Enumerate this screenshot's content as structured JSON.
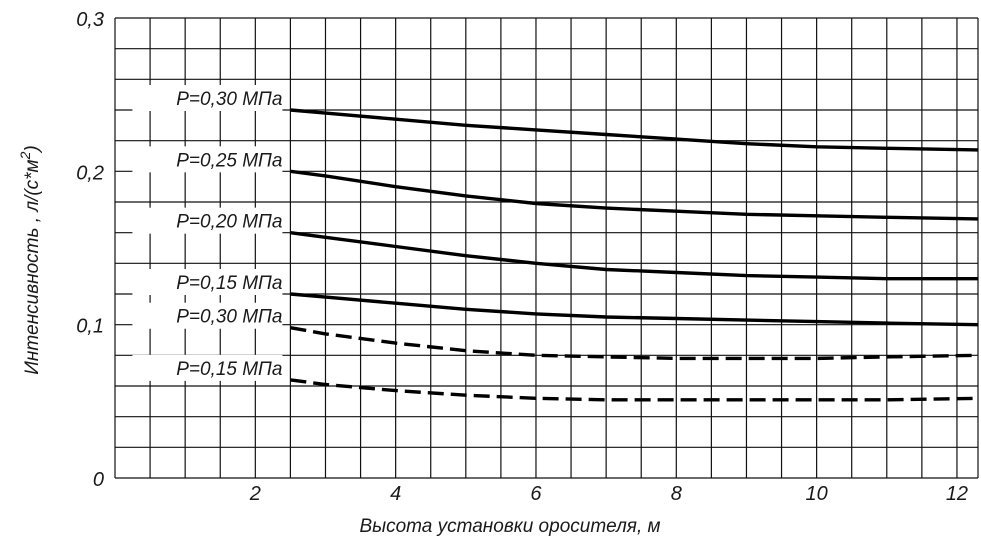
{
  "chart_data": {
    "type": "line",
    "xlabel": "Высота установки оросителя, м",
    "ylabel": "Интенсивность , л/(с*м²)",
    "xlim": [
      0,
      12.3
    ],
    "ylim": [
      0,
      0.3
    ],
    "x_ticks": [
      "2",
      "4",
      "6",
      "8",
      "10",
      "12"
    ],
    "x_tick_values": [
      2,
      4,
      6,
      8,
      10,
      12
    ],
    "y_ticks": [
      "0",
      "0,1",
      "0,2",
      "0,3"
    ],
    "y_tick_values": [
      0,
      0.1,
      0.2,
      0.3
    ],
    "grid": true,
    "series": [
      {
        "name": "P=0,30 МПа",
        "style": "solid",
        "x": [
          2.5,
          3,
          4,
          5,
          6,
          7,
          8,
          9,
          10,
          11,
          12.3
        ],
        "values": [
          0.24,
          0.238,
          0.234,
          0.23,
          0.227,
          0.224,
          0.221,
          0.218,
          0.216,
          0.215,
          0.214
        ]
      },
      {
        "name": "P=0,25 МПа",
        "style": "solid",
        "x": [
          2.5,
          3,
          4,
          5,
          6,
          7,
          8,
          9,
          10,
          11,
          12.3
        ],
        "values": [
          0.2,
          0.197,
          0.19,
          0.184,
          0.179,
          0.176,
          0.174,
          0.172,
          0.171,
          0.17,
          0.169
        ]
      },
      {
        "name": "P=0,20 МПа",
        "style": "solid",
        "x": [
          2.5,
          3,
          4,
          5,
          6,
          7,
          8,
          9,
          10,
          11,
          12.3
        ],
        "values": [
          0.16,
          0.157,
          0.151,
          0.145,
          0.14,
          0.136,
          0.134,
          0.132,
          0.131,
          0.13,
          0.13
        ]
      },
      {
        "name": "P=0,15 МПа",
        "style": "solid",
        "x": [
          2.5,
          3,
          4,
          5,
          6,
          7,
          8,
          9,
          10,
          11,
          12.3
        ],
        "values": [
          0.12,
          0.118,
          0.114,
          0.11,
          0.107,
          0.105,
          0.104,
          0.103,
          0.102,
          0.101,
          0.1
        ]
      },
      {
        "name": "P=0,30 МПа",
        "style": "dashed",
        "x": [
          2.5,
          3,
          4,
          5,
          6,
          7,
          8,
          9,
          10,
          11,
          12.3
        ],
        "values": [
          0.098,
          0.094,
          0.088,
          0.083,
          0.08,
          0.079,
          0.078,
          0.078,
          0.078,
          0.079,
          0.08
        ]
      },
      {
        "name": "P=0,15 МПа",
        "style": "dashed",
        "x": [
          2.5,
          3,
          4,
          5,
          6,
          7,
          8,
          9,
          10,
          11,
          12.3
        ],
        "values": [
          0.064,
          0.061,
          0.057,
          0.054,
          0.052,
          0.051,
          0.051,
          0.051,
          0.051,
          0.051,
          0.052
        ]
      }
    ]
  }
}
